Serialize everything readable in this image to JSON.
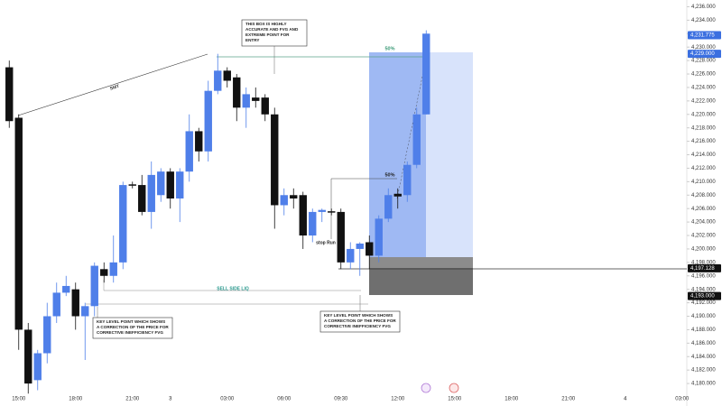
{
  "chart_data": {
    "type": "candlestick",
    "up_color": "#4f7fe9",
    "down_color": "#111111",
    "xlim": [
      -0.5,
      71.5
    ],
    "xticks": [
      {
        "value": 1,
        "label": "15:00"
      },
      {
        "value": 7,
        "label": "18:00"
      },
      {
        "value": 13,
        "label": "21:00"
      },
      {
        "value": 17,
        "label": "3"
      },
      {
        "value": 23,
        "label": "03:00"
      },
      {
        "value": 29,
        "label": "06:00"
      },
      {
        "value": 35,
        "label": "09:30"
      },
      {
        "value": 41,
        "label": "12:00"
      },
      {
        "value": 47,
        "label": "15:00"
      },
      {
        "value": 53,
        "label": "18:00"
      },
      {
        "value": 59,
        "label": "21:00"
      },
      {
        "value": 65,
        "label": "4"
      },
      {
        "value": 71,
        "label": "03:00"
      }
    ],
    "ylim": [
      4178,
      4237
    ],
    "yticks": [
      {
        "value": 4180,
        "label": "4,180.000"
      },
      {
        "value": 4182,
        "label": "4,182.000"
      },
      {
        "value": 4184,
        "label": "4,184.000"
      },
      {
        "value": 4186,
        "label": "4,186.000"
      },
      {
        "value": 4188,
        "label": "4,188.000"
      },
      {
        "value": 4190,
        "label": "4,190.000"
      },
      {
        "value": 4192,
        "label": "4,192.000"
      },
      {
        "value": 4194,
        "label": "4,194.000"
      },
      {
        "value": 4196,
        "label": "4,196.000"
      },
      {
        "value": 4198,
        "label": "4,198.000"
      },
      {
        "value": 4200,
        "label": "4,200.000"
      },
      {
        "value": 4202,
        "label": "4,202.000"
      },
      {
        "value": 4204,
        "label": "4,204.000"
      },
      {
        "value": 4206,
        "label": "4,206.000"
      },
      {
        "value": 4208,
        "label": "4,208.000"
      },
      {
        "value": 4210,
        "label": "4,210.000"
      },
      {
        "value": 4212,
        "label": "4,212.000"
      },
      {
        "value": 4214,
        "label": "4,214.000"
      },
      {
        "value": 4216,
        "label": "4,216.000"
      },
      {
        "value": 4218,
        "label": "4,218.000"
      },
      {
        "value": 4220,
        "label": "4,220.000"
      },
      {
        "value": 4222,
        "label": "4,222.000"
      },
      {
        "value": 4224,
        "label": "4,224.000"
      },
      {
        "value": 4226,
        "label": "4,226.000"
      },
      {
        "value": 4228,
        "label": "4,228.000"
      },
      {
        "value": 4230,
        "label": "4,230.000"
      },
      {
        "value": 4232,
        "label": "4,232.000"
      },
      {
        "value": 4234,
        "label": "4,234.000"
      },
      {
        "value": 4236,
        "label": "4,236.000"
      }
    ],
    "open": [
      4227,
      4219.5,
      4188,
      4180.5,
      4184.5,
      4190,
      4193.5,
      4194,
      4190,
      4191.5,
      4197,
      4196,
      4198,
      4209.6,
      4209.5,
      4205.5,
      4208,
      4211.5,
      4207.5,
      4211.5,
      4217.5,
      4214.5,
      4223.5,
      4226.5,
      4225.5,
      4221,
      4222.5,
      4222.5,
      4220,
      4206.5,
      4208,
      4208,
      4202,
      4205.5,
      4205.6,
      4205.5,
      4198,
      4200,
      4201,
      4199,
      4204.5,
      4208.2,
      4208,
      4212.5,
      4220
    ],
    "high": [
      4228,
      4220,
      4189,
      4185,
      4192,
      4195,
      4196,
      4195,
      4192,
      4198,
      4198,
      4202,
      4210,
      4210,
      4211,
      4213,
      4212,
      4212,
      4212,
      4220,
      4218,
      4225,
      4229,
      4227,
      4226,
      4224,
      4224,
      4223,
      4221,
      4209,
      4209,
      4208.5,
      4206,
      4206,
      4206,
      4206,
      4201,
      4201,
      4202,
      4205,
      4209,
      4209,
      4213,
      4221,
      4232.5
    ],
    "low": [
      4218,
      4185,
      4178.5,
      4179,
      4183,
      4189,
      4193,
      4188,
      4183.5,
      4190,
      4195,
      4195,
      4197,
      4209,
      4205,
      4203,
      4207,
      4206,
      4204,
      4210,
      4213,
      4213,
      4223,
      4224,
      4219,
      4218,
      4221,
      4219,
      4203,
      4205,
      4206,
      4200,
      4201,
      4204,
      4205,
      4197,
      4197,
      4196,
      4197,
      4198,
      4204,
      4206,
      4207,
      4212,
      4220
    ],
    "close": [
      4219,
      4188,
      4180,
      4184.5,
      4190,
      4193.5,
      4194.5,
      4190,
      4191.5,
      4197.5,
      4196,
      4198,
      4209.5,
      4209.4,
      4205.5,
      4211,
      4211.5,
      4207.5,
      4211.5,
      4217.5,
      4214.5,
      4223.5,
      4226.5,
      4225,
      4221,
      4223,
      4222,
      4220,
      4206.5,
      4208,
      4207.5,
      4202,
      4205.5,
      4205.8,
      4205.4,
      4198,
      4200,
      4200.8,
      4199,
      4204.5,
      4208,
      4207.8,
      4212.5,
      4220,
      4232
    ],
    "price_labels": [
      {
        "value": 4231.775,
        "label": "4,231.775",
        "color": "#3b6fe0"
      },
      {
        "value": 4229,
        "label": "4,229.000",
        "color": "#3b6fe0"
      },
      {
        "value": 4197.128,
        "label": "4,197.128",
        "color": "#111111"
      },
      {
        "value": 4193,
        "label": "4,193.000",
        "color": "#111111"
      }
    ],
    "annotations": [
      {
        "lines": [
          "THIS BOX IS HIGHLY",
          "ACCURATE AND FVG AND",
          "EXTREME POINT FOR",
          "ENTRY"
        ]
      },
      {
        "lines": [
          "KEY LEVEL POINT WHICH SHOWS",
          "A CORRECTION OF THE PRICE FOR",
          "CORRECTIVE INEFFICIENCY FVG"
        ]
      },
      {
        "lines": [
          "KEY LEVEL POINT WHICH SHOWS",
          "A CORRECTION OF THE PRICE FOR",
          "CORRECTIVE INEFFICIENCY FVG"
        ]
      }
    ],
    "labels": [
      "SMT",
      "50%",
      "50%",
      "SELL SIDE LIQ",
      "stop Run"
    ]
  }
}
